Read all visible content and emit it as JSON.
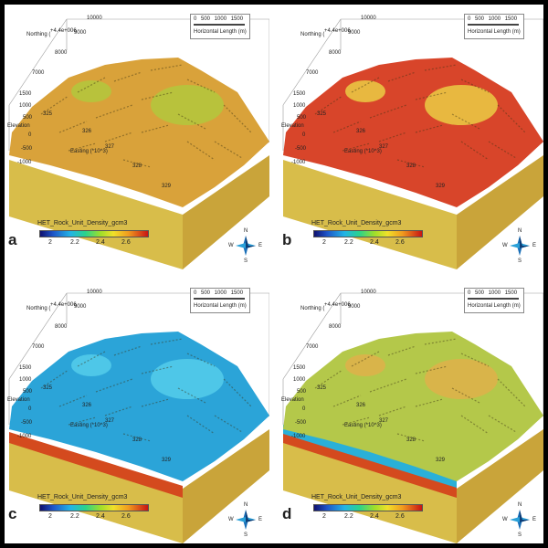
{
  "panels": [
    {
      "letter": "a",
      "scheme": "orange"
    },
    {
      "letter": "b",
      "scheme": "red"
    },
    {
      "letter": "c",
      "scheme": "blue"
    },
    {
      "letter": "d",
      "scheme": "yellow"
    }
  ],
  "labels": {
    "northing": "Northing (",
    "northing_exp": "+4.4e+006",
    "northing_ticks": [
      "10000",
      "9000",
      "8000",
      "7000"
    ],
    "elevation": "Elevation",
    "elevation_ticks": [
      "1500",
      "1000",
      "500",
      "0",
      "-500",
      "-1000"
    ],
    "easting": "Easting (*10^3)",
    "easting_ticks": [
      "325",
      "326",
      "327",
      "328",
      "329"
    ],
    "scale_ticks": "0 500 1000 1500",
    "horizontal_length": "Horizontal Length (m)",
    "legend_title": "HET_Rock_Unit_Density_gcm3",
    "legend_ticks": [
      "2",
      "2.2",
      "2.4",
      "2.6"
    ],
    "compass": {
      "n": "N",
      "s": "S",
      "w": "W",
      "e": "E"
    }
  },
  "colors": {
    "orange": {
      "top": "#d9a23a",
      "hi": "#b8c23c",
      "side": "#c9a43a",
      "front": "#d8bd4a"
    },
    "red": {
      "top": "#d8452a",
      "hi": "#e8b840",
      "side": "#c9a43a",
      "front": "#d8bd4a"
    },
    "blue": {
      "top": "#2ba4d8",
      "hi": "#4ec7e8",
      "side": "#c9a43a",
      "front": "#d8bd4a",
      "band": "#d44a1e"
    },
    "yellow": {
      "top": "#b4c84a",
      "hi": "#d9b44a",
      "side": "#c9a43a",
      "front": "#d8bd4a",
      "band": "#d44a1e",
      "band2": "#2ab0d8"
    }
  }
}
